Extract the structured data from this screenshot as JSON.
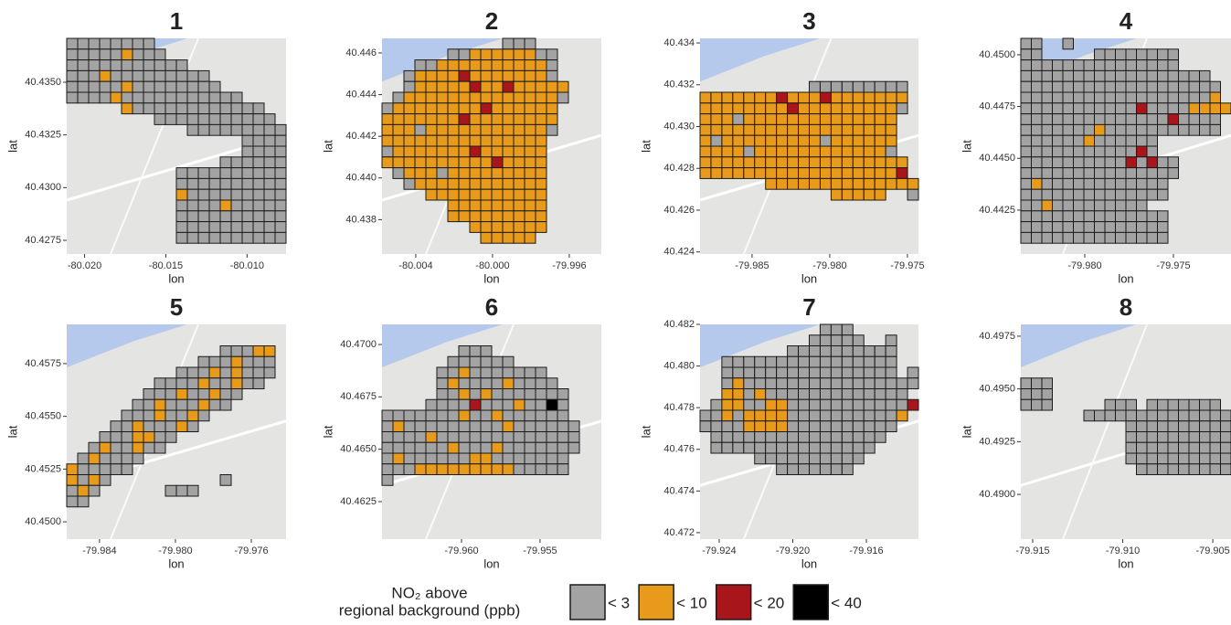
{
  "axis_labels": {
    "x": "lon",
    "y": "lat"
  },
  "legend": {
    "title": "NO₂ above",
    "subtitle": "regional background (ppb)",
    "items": [
      {
        "label": "< 3",
        "color": "#a3a3a3"
      },
      {
        "label": "< 10",
        "color": "#e89a1a"
      },
      {
        "label": "< 20",
        "color": "#a8151a"
      },
      {
        "label": "< 40",
        "color": "#000000"
      }
    ]
  },
  "panels": [
    {
      "title": "1",
      "xlim": [
        -80.0211,
        -80.0076
      ],
      "ylim": [
        40.42685,
        40.43708
      ],
      "xticks": [
        {
          "value": -80.02,
          "label": "-80.020"
        },
        -80.015,
        {
          "value": -80.01,
          "label": "-80.010"
        }
      ],
      "yticks": [
        {
          "value": 40.435,
          "label": "40.4350"
        },
        40.4325,
        {
          "value": 40.43,
          "label": "40.4300"
        },
        40.4275
      ],
      "cells": [
        "gggggggg............",
        "gggggoggg...........",
        "ggggggggggg.........",
        "gggoggggggggg.......",
        "gggggogggggggg......",
        "ggggoggggggggggg....",
        ".....ogggggggggggg..",
        "........ggggggggggg.",
        "...........ggggggggg",
        "................gggg",
        "................gggg",
        "..............gggggg",
        "..........gggggggggg",
        "..........gggggggggg",
        "..........oggggggggg",
        "..........ggggoggggg",
        "..........gggggggggg",
        "..........gggggggggg",
        "..........gggggggggg"
      ]
    },
    {
      "title": "2",
      "xlim": [
        -80.00576,
        -79.99433
      ],
      "ylim": [
        40.43635,
        40.4467
      ],
      "xticks": [
        -80.004,
        {
          "value": -80,
          "label": "-80.000"
        },
        -79.996
      ],
      "yticks": [
        40.446,
        40.444,
        40.442,
        {
          "value": 40.44,
          "label": "40.440"
        },
        40.438
      ],
      "cells": [
        "...........ggg......",
        "......ggoooooogg....",
        "...ggoooooooooog....",
        "..goooorooooooog....",
        "..goooooroorooooo...",
        ".goooooooooooooog...",
        "gooooooooroooooo....",
        "oooooooroooooooo....",
        "ooogooooooooooog....",
        "ooooooooooooooo.....",
        "goooooooroooooo.....",
        "ooooooooooroooo.....",
        ".gooogooooooooo.....",
        "..goooooooooooo.....",
        "....ooooooooooo.....",
        "......ooooooooo.....",
        "......ooooooooo.....",
        "........ooooooo.....",
        ".........ooooo......"
      ]
    },
    {
      "title": "3",
      "xlim": [
        -79.98835,
        -79.97429
      ],
      "ylim": [
        40.4239,
        40.43422
      ],
      "xticks": [
        -79.985,
        {
          "value": -79.98,
          "label": "-79.980"
        },
        -79.975
      ],
      "yticks": [
        40.434,
        40.432,
        {
          "value": 40.43,
          "label": "40.430"
        },
        40.428,
        40.426,
        40.424
      ],
      "cells": [
        "....................",
        "....................",
        "....................",
        "....................",
        "..........ggggggggg.",
        "ooooooorooorooooooo.",
        "oooooooorooooooooog.",
        "ooogoooooooooooooo..",
        "oooooooooooooooooo..",
        "ogooooooooogoooooo..",
        "oooogoooooooooooog..",
        "ooooooooooooooooooo.",
        "oooooooooooooooooor.",
        "......oooooooooooooo",
        "............ooooo..g"
      ]
    },
    {
      "title": "4",
      "xlim": [
        -79.98361,
        -79.97175
      ],
      "ylim": [
        40.44038,
        40.45079
      ],
      "xticks": [
        {
          "value": -79.98,
          "label": "-79.980"
        },
        -79.975
      ],
      "yticks": [
        {
          "value": 40.45,
          "label": "40.4500"
        },
        40.4475,
        {
          "value": 40.445,
          "label": "40.4450"
        },
        40.4425
      ],
      "cells": [
        "gg..g...............",
        "gg.....gggggggg.....",
        "ggggggggggggggg.....",
        "gggggggggggggggggg..",
        "ggggggggggggggggggg.",
        "ggggggggggggggggggo.",
        "gggggggggggrggggoooo",
        "ggggggggggggggrgggg.",
        "gggggggoggggggggggg.",
        "ggggggogggggg.......",
        "gggggggggggrg.......",
        "ggggggggggrgrgg.....",
        "ggggggggggggggg.....",
        "gogggggggggggg......",
        "gggggggggggggg......",
        "ggoggggggggg........",
        "gggggggggggggg......",
        "gggggggggggggg......",
        "gggggggggggggg......"
      ]
    },
    {
      "title": "5",
      "xlim": [
        -79.98573,
        -79.97417
      ],
      "ylim": [
        40.44918,
        40.45936
      ],
      "xticks": [
        -79.984,
        {
          "value": -79.98,
          "label": "-79.980"
        },
        -79.976
      ],
      "yticks": [
        40.4575,
        {
          "value": 40.455,
          "label": "40.4550"
        },
        40.4525,
        {
          "value": 40.45,
          "label": "40.4500"
        }
      ],
      "cells": [
        "....................",
        "....................",
        "..............gggoo.",
        "............gggoggg.",
        "..........gggogoggg.",
        "........ggggoggogg..",
        ".......gggoggogg....",
        "......ggogggogg.....",
        ".....gggoggog.......",
        "....ggogggog........",
        "...gggoogg..........",
        "..goggogg...........",
        ".gogggg.............",
        "oggggg..............",
        "ogog..........g.....",
        "gog......ggg........",
        "gg.................."
      ]
    },
    {
      "title": "6",
      "xlim": [
        -79.96506,
        -79.9511
      ],
      "ylim": [
        40.46071,
        40.47096
      ],
      "xticks": [
        {
          "value": -79.96,
          "label": "-79.960"
        },
        -79.955
      ],
      "yticks": [
        {
          "value": 40.47,
          "label": "40.4700"
        },
        40.4675,
        {
          "value": 40.465,
          "label": "40.4650"
        },
        40.4625
      ],
      "cells": [
        "....................",
        "....................",
        ".......ggg..........",
        "......gggggg........",
        ".....ggoggggggg.....",
        ".....goggggogggg....",
        ".....ggogoggggggg...",
        "....ggggrgggoggkg...",
        "gggggggoggogggggg...",
        "gogggggggggogggggg..",
        "ggggoggggggggggggg..",
        "ggggggogggoggggggg..",
        "goggggggooggggggg...",
        "gggoooooooooggggg...",
        "g..................."
      ]
    },
    {
      "title": "7",
      "xlim": [
        -79.92504,
        -79.91317
      ],
      "ylim": [
        40.47169,
        40.482
      ],
      "xticks": [
        -79.924,
        {
          "value": -79.92,
          "label": "-79.920"
        },
        -79.916
      ],
      "yticks": [
        40.482,
        {
          "value": 40.48,
          "label": "40.480"
        },
        40.478,
        40.476,
        40.474,
        40.472
      ],
      "cells": [
        "...........ggg......",
        "..........ggggg..g..",
        "........gggggggggg..",
        "..gggggggggggggggg..",
        "..gggggggggggggggg.g",
        "..gogggggggggggggggg",
        "..oogoggggggggggggg.",
        ".googgoogggggggggggr",
        "ggogooooggggggggggo.",
        "ggggoooogggggggggg..",
        ".gggggggggggggggg...",
        ".ggggggggggggggg....",
        ".....gggggggggg.....",
        ".......ggggggg......"
      ]
    },
    {
      "title": "8",
      "xlim": [
        -79.91566,
        -79.90399
      ],
      "ylim": [
        40.48788,
        40.49806
      ],
      "xticks": [
        -79.915,
        {
          "value": -79.91,
          "label": "-79.910"
        },
        -79.905
      ],
      "yticks": [
        40.4975,
        {
          "value": 40.495,
          "label": "40.4950"
        },
        40.4925,
        {
          "value": 40.49,
          "label": "40.4900"
        }
      ],
      "cells": [
        "....................",
        "....................",
        "....................",
        "....................",
        "....................",
        "ggg.................",
        "ggg.................",
        "ggg.....ggg.ggggggg.",
        "......gggggggggggggg",
        "..........gggggggggg",
        "..........gggggggggg",
        "..........gggggggggg",
        "..........gggggggggg",
        "...........ggggggggg"
      ]
    }
  ]
}
